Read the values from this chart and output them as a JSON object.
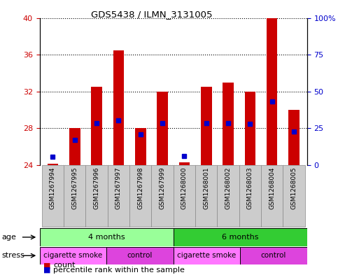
{
  "title": "GDS5438 / ILMN_3131005",
  "samples": [
    "GSM1267994",
    "GSM1267995",
    "GSM1267996",
    "GSM1267997",
    "GSM1267998",
    "GSM1267999",
    "GSM1268000",
    "GSM1268001",
    "GSM1268002",
    "GSM1268003",
    "GSM1268004",
    "GSM1268005"
  ],
  "count_values": [
    24.1,
    28.0,
    32.5,
    36.5,
    28.0,
    32.0,
    24.3,
    32.5,
    33.0,
    32.0,
    40.0,
    30.0
  ],
  "percentile_values": [
    5.5,
    17.0,
    28.5,
    30.5,
    21.0,
    28.5,
    6.0,
    28.5,
    28.5,
    28.0,
    43.0,
    22.5
  ],
  "count_base": 24.0,
  "ylim_left": [
    24,
    40
  ],
  "ylim_right": [
    0,
    100
  ],
  "yticks_left": [
    24,
    28,
    32,
    36,
    40
  ],
  "yticks_right": [
    0,
    25,
    50,
    75,
    100
  ],
  "ytick_labels_right": [
    "0",
    "25",
    "50",
    "75",
    "100%"
  ],
  "bar_color": "#cc0000",
  "percentile_color": "#0000cc",
  "bar_width": 0.5,
  "age_groups": [
    {
      "label": "4 months",
      "start": 0,
      "end": 6,
      "color": "#99ff99"
    },
    {
      "label": "6 months",
      "start": 6,
      "end": 12,
      "color": "#33cc33"
    }
  ],
  "stress_groups": [
    {
      "label": "cigarette smoke",
      "start": 0,
      "end": 3,
      "color": "#ff77ff"
    },
    {
      "label": "control",
      "start": 3,
      "end": 6,
      "color": "#dd44dd"
    },
    {
      "label": "cigarette smoke",
      "start": 6,
      "end": 9,
      "color": "#ff77ff"
    },
    {
      "label": "control",
      "start": 9,
      "end": 12,
      "color": "#dd44dd"
    }
  ],
  "age_label": "age",
  "stress_label": "stress",
  "legend_count_label": "count",
  "legend_pct_label": "percentile rank within the sample",
  "background_color": "#ffffff",
  "plot_bg_color": "#ffffff",
  "tick_label_color_left": "#cc0000",
  "tick_label_color_right": "#0000cc",
  "sample_box_color": "#cccccc",
  "sample_box_edge_color": "#888888"
}
